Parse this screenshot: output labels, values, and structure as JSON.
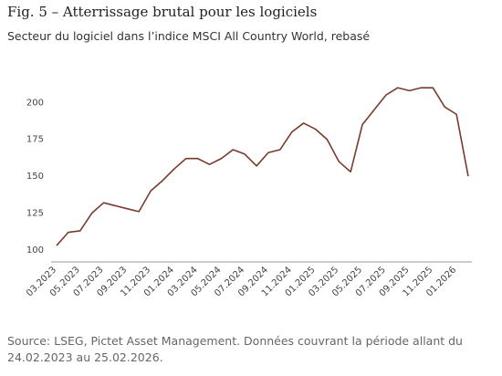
{
  "title": "Fig. 5 – Atterrissage brutal pour les logiciels",
  "subtitle": "Secteur du logiciel dans l’indice MSCI All Country World, rebasé",
  "source": "Source: LSEG, Pictet Asset Management. Données couvrant la période allant du 24.02.2023 au 25.02.2026.",
  "chart_data": {
    "type": "line",
    "categories": [
      "03.2023",
      null,
      "05.2023",
      null,
      "07.2023",
      null,
      "09.2023",
      null,
      "11.2023",
      null,
      "01.2024",
      null,
      "03.2024",
      null,
      "05.2024",
      null,
      "07.2024",
      null,
      "09.2024",
      null,
      "11.2024",
      null,
      "01.2025",
      null,
      "03.2025",
      null,
      "05.2025",
      null,
      "07.2025",
      null,
      "09.2025",
      null,
      "11.2025",
      null,
      "01.2026",
      null
    ],
    "values": [
      103,
      112,
      113,
      125,
      132,
      130,
      128,
      126,
      140,
      147,
      155,
      162,
      162,
      158,
      162,
      168,
      165,
      157,
      166,
      168,
      180,
      186,
      182,
      175,
      160,
      153,
      185,
      195,
      205,
      210,
      208,
      210,
      210,
      197,
      192,
      150
    ],
    "color": "#7a3b2e",
    "ylim": [
      95,
      220
    ],
    "yticks": [
      100,
      125,
      150,
      175,
      200
    ],
    "grid": false
  }
}
